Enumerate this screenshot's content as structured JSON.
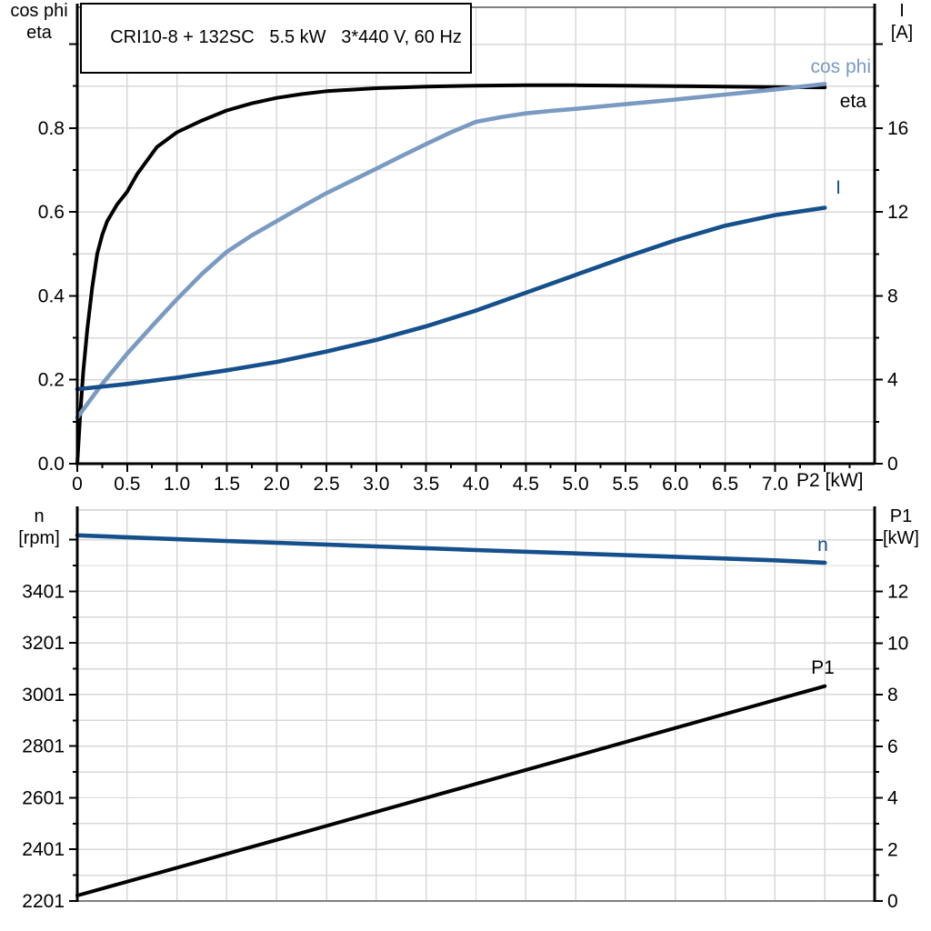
{
  "title": "CRI10-8 + 132SC   5.5 kW   3*440 V, 60 Hz",
  "colors": {
    "cos_phi": "#7A9AC2",
    "current_blue": "#16508C",
    "line_black": "#000000",
    "grid": "#D8D8D8",
    "frame_light": "#B8B8B8",
    "frame_gray": "#808080",
    "axis_black": "#000000"
  },
  "top_chart": {
    "left_axis_title_line1": "cos phi",
    "left_axis_title_line2": "eta",
    "right_axis_title_line1": "I",
    "right_axis_title_line2": "[A]",
    "x_axis_title": "P2 [kW]",
    "curve_labels": {
      "cos_phi": "cos phi",
      "eta": "eta",
      "current": "I"
    }
  },
  "bottom_chart": {
    "left_axis_title_line1": "n",
    "left_axis_title_line2": "[rpm]",
    "right_axis_title_line1": "P1",
    "right_axis_title_line2": "[kW]",
    "curve_labels": {
      "speed": "n",
      "power": "P1"
    }
  },
  "chart_data": [
    {
      "id": "motor-electrical-curves",
      "type": "line",
      "title": "CRI10-8 + 132SC   5.5 kW   3*440 V, 60 Hz",
      "xlabel": "P2 [kW]",
      "x_axis": {
        "range": [
          0,
          8
        ],
        "grid_values": [
          0.5,
          1,
          1.5,
          2,
          2.5,
          3,
          3.5,
          4,
          4.5,
          5,
          5.5,
          6,
          6.5,
          7,
          7.5
        ],
        "major_ticks": [
          0,
          0.5,
          1,
          1.5,
          2,
          2.5,
          3,
          3.5,
          4,
          4.5,
          5,
          5.5,
          6,
          6.5,
          7,
          7.5
        ],
        "tick_labels": [
          "0",
          "0.5",
          "1.0",
          "1.5",
          "2.0",
          "2.5",
          "3.0",
          "3.5",
          "4.0",
          "4.5",
          "5.0",
          "5.5",
          "6.0",
          "6.5",
          "7.0",
          null
        ],
        "minor_ticks": [
          0.25,
          0.75,
          1.25,
          1.75,
          2.25,
          2.75,
          3.25,
          3.75,
          4.25,
          4.75,
          5.25,
          5.75,
          6.25,
          6.75,
          7.25,
          7.75
        ]
      },
      "left_axis": {
        "label": "cos phi / eta",
        "range": [
          0,
          1.088
        ],
        "grid_values": [
          0.1,
          0.2,
          0.3,
          0.4,
          0.5,
          0.6,
          0.7,
          0.8,
          0.9,
          1.0
        ],
        "major_ticks": [
          0,
          0.2,
          0.4,
          0.6,
          0.8,
          1.0
        ],
        "tick_labels": [
          "0.0",
          "0.2",
          "0.4",
          "0.6",
          "0.8",
          null
        ],
        "minor_ticks": [
          0.1,
          0.3,
          0.5,
          0.7,
          0.9
        ]
      },
      "right_axis": {
        "label": "I [A]",
        "range": [
          0,
          21.76
        ],
        "major_ticks": [
          0,
          4,
          8,
          12,
          16,
          20
        ],
        "tick_labels": [
          "0",
          "4",
          "8",
          "12",
          "16",
          null
        ],
        "minor_ticks": [
          2,
          6,
          10,
          14,
          18
        ]
      },
      "series": [
        {
          "name": "eta",
          "label": "eta",
          "axis": "left",
          "color_key": "line_black",
          "x": [
            0,
            0.03,
            0.06,
            0.1,
            0.15,
            0.2,
            0.25,
            0.3,
            0.4,
            0.5,
            0.6,
            0.8,
            1.0,
            1.25,
            1.5,
            1.75,
            2.0,
            2.25,
            2.5,
            3.0,
            3.5,
            4.0,
            4.5,
            5.0,
            5.5,
            6.0,
            6.5,
            7.0,
            7.5
          ],
          "y": [
            0,
            0.12,
            0.22,
            0.32,
            0.42,
            0.5,
            0.545,
            0.578,
            0.618,
            0.648,
            0.69,
            0.755,
            0.79,
            0.818,
            0.842,
            0.859,
            0.872,
            0.881,
            0.888,
            0.895,
            0.899,
            0.901,
            0.902,
            0.902,
            0.901,
            0.9,
            0.899,
            0.898,
            0.897
          ]
        },
        {
          "name": "cos_phi",
          "label": "cos phi",
          "axis": "left",
          "color_key": "cos_phi",
          "x": [
            0,
            0.25,
            0.5,
            0.75,
            1.0,
            1.25,
            1.5,
            1.75,
            2.0,
            2.25,
            2.5,
            2.75,
            3.0,
            3.25,
            3.5,
            3.75,
            4.0,
            4.25,
            4.5,
            4.75,
            5.0,
            5.5,
            6.0,
            6.5,
            7.0,
            7.5
          ],
          "y": [
            0.11,
            0.19,
            0.262,
            0.328,
            0.392,
            0.452,
            0.505,
            0.544,
            0.578,
            0.612,
            0.645,
            0.674,
            0.703,
            0.733,
            0.762,
            0.79,
            0.815,
            0.826,
            0.835,
            0.841,
            0.846,
            0.857,
            0.868,
            0.88,
            0.892,
            0.905
          ]
        },
        {
          "name": "current",
          "label": "I",
          "axis": "right",
          "color_key": "current_blue",
          "x": [
            0,
            0.5,
            1.0,
            1.5,
            2.0,
            2.5,
            3.0,
            3.5,
            4.0,
            4.5,
            5.0,
            5.5,
            6.0,
            6.5,
            7.0,
            7.5
          ],
          "y": [
            3.55,
            3.8,
            4.1,
            4.45,
            4.85,
            5.35,
            5.9,
            6.55,
            7.3,
            8.15,
            9.0,
            9.85,
            10.65,
            11.35,
            11.85,
            12.2
          ]
        }
      ]
    },
    {
      "id": "motor-speed-power-curves",
      "type": "line",
      "xlabel": "P2 [kW]",
      "x_axis": {
        "range": [
          0,
          8
        ],
        "grid_values": [
          0.5,
          1,
          1.5,
          2,
          2.5,
          3,
          3.5,
          4,
          4.5,
          5,
          5.5,
          6,
          6.5,
          7,
          7.5
        ],
        "major_ticks": [],
        "tick_labels": [],
        "minor_ticks": []
      },
      "left_axis": {
        "label": "n [rpm]",
        "range": [
          2201,
          3716
        ],
        "grid_values": [
          2301,
          2401,
          2501,
          2601,
          2701,
          2801,
          2901,
          3001,
          3101,
          3201,
          3301,
          3401,
          3501,
          3601
        ],
        "major_ticks": [
          2201,
          2401,
          2601,
          2801,
          3001,
          3201,
          3401,
          3601
        ],
        "tick_labels": [
          "2201",
          "2401",
          "2601",
          "2801",
          "3001",
          "3201",
          "3401",
          null
        ],
        "minor_ticks": [
          2301,
          2501,
          2701,
          2901,
          3101,
          3301,
          3501
        ]
      },
      "right_axis": {
        "label": "P1 [kW]",
        "range": [
          0,
          15.16
        ],
        "major_ticks": [
          0,
          2,
          4,
          6,
          8,
          10,
          12,
          14
        ],
        "tick_labels": [
          "0",
          "2",
          "4",
          "6",
          "8",
          "10",
          "12",
          null
        ],
        "minor_ticks": [
          1,
          3,
          5,
          7,
          9,
          11,
          13
        ]
      },
      "series": [
        {
          "name": "speed",
          "label": "n",
          "axis": "left",
          "color_key": "current_blue",
          "x": [
            0,
            1,
            2,
            3,
            4,
            5,
            6,
            7,
            7.5
          ],
          "y": [
            3618,
            3603,
            3589,
            3575,
            3561,
            3548,
            3535,
            3521,
            3512
          ]
        },
        {
          "name": "power_p1",
          "label": "P1",
          "axis": "right",
          "color_key": "line_black",
          "x": [
            0,
            1,
            2,
            3,
            4,
            5,
            6,
            7,
            7.5
          ],
          "y": [
            0.21,
            1.29,
            2.37,
            3.46,
            4.54,
            5.62,
            6.71,
            7.79,
            8.33
          ]
        }
      ]
    }
  ]
}
